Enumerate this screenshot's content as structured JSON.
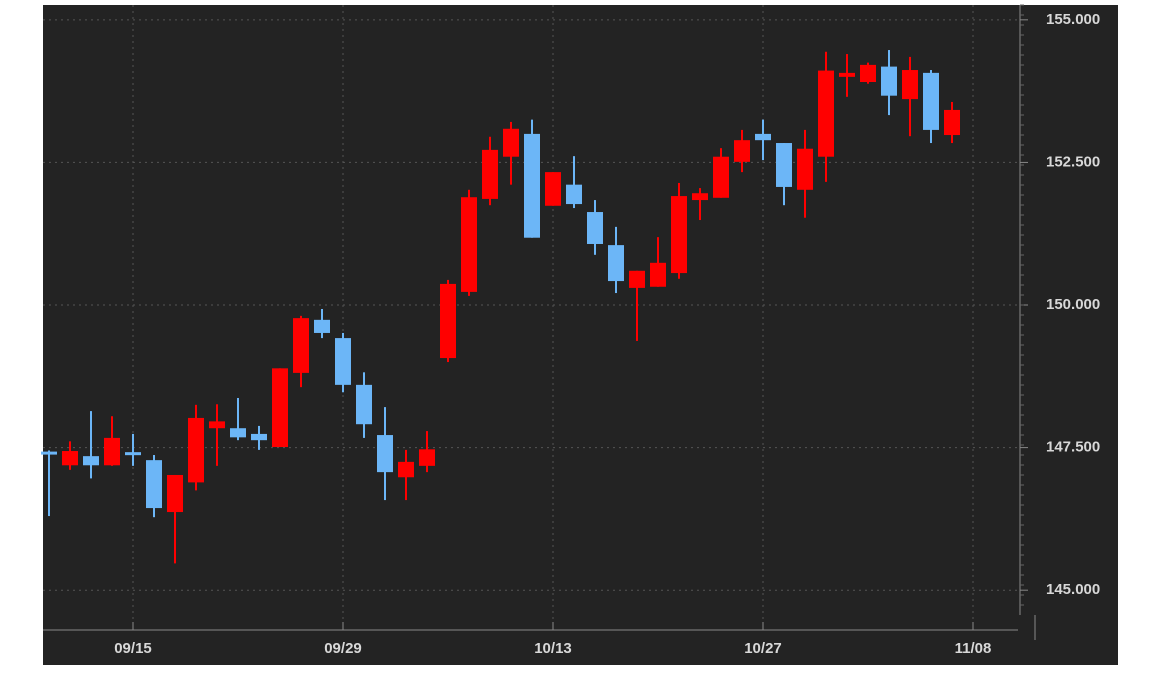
{
  "chart_data": {
    "type": "candlestick",
    "categories": [
      null,
      null,
      null,
      null,
      "09/15",
      null,
      null,
      null,
      null,
      null,
      null,
      null,
      null,
      null,
      "09/29",
      null,
      null,
      null,
      null,
      null,
      null,
      null,
      null,
      null,
      "10/13",
      null,
      null,
      null,
      null,
      null,
      null,
      null,
      null,
      null,
      "10/27",
      null,
      null,
      null,
      null,
      null,
      null,
      null,
      null,
      null,
      "11/08"
    ],
    "open": [
      147.43,
      147.19,
      147.35,
      147.19,
      147.42,
      147.28,
      146.37,
      146.89,
      147.84,
      147.84,
      147.74,
      147.51,
      148.81,
      149.74,
      149.42,
      148.6,
      147.72,
      146.98,
      147.18,
      149.07,
      150.23,
      151.86,
      152.6,
      153.0,
      151.74,
      152.11,
      151.63,
      151.05,
      150.3,
      150.32,
      150.56,
      151.84,
      151.88,
      152.51,
      153.0,
      152.84,
      152.02,
      152.6,
      154.0,
      153.91,
      154.18,
      153.61,
      154.07,
      152.98,
      null
    ],
    "high": [
      147.45,
      147.61,
      148.14,
      148.05,
      147.74,
      147.37,
      147.02,
      148.25,
      148.26,
      148.37,
      147.88,
      148.89,
      149.81,
      149.93,
      149.51,
      148.82,
      148.21,
      147.46,
      147.79,
      150.44,
      152.02,
      152.95,
      153.21,
      153.25,
      152.33,
      152.61,
      151.84,
      151.37,
      150.6,
      151.19,
      152.14,
      152.05,
      152.75,
      153.07,
      153.25,
      152.84,
      153.07,
      154.44,
      154.4,
      154.25,
      154.47,
      154.35,
      154.12,
      153.56,
      null
    ],
    "low": [
      146.3,
      147.11,
      146.96,
      147.18,
      147.18,
      146.28,
      145.47,
      146.75,
      147.18,
      147.63,
      147.46,
      147.51,
      148.56,
      149.42,
      148.47,
      147.67,
      146.58,
      146.58,
      147.07,
      149.0,
      150.16,
      151.75,
      152.11,
      151.18,
      151.74,
      151.7,
      150.88,
      150.21,
      149.37,
      150.32,
      150.46,
      151.49,
      151.88,
      152.33,
      152.54,
      151.75,
      151.53,
      152.16,
      153.65,
      153.88,
      153.33,
      152.96,
      152.84,
      152.84,
      null
    ],
    "close": [
      147.42,
      147.44,
      147.19,
      147.67,
      147.38,
      146.44,
      147.02,
      148.02,
      147.96,
      147.68,
      147.63,
      148.89,
      149.77,
      149.51,
      148.6,
      147.91,
      147.07,
      147.25,
      147.47,
      150.37,
      151.89,
      152.72,
      153.09,
      151.18,
      152.33,
      151.77,
      151.07,
      150.42,
      150.6,
      150.74,
      151.91,
      151.96,
      152.6,
      152.89,
      152.89,
      152.07,
      152.74,
      154.11,
      154.07,
      154.21,
      153.67,
      154.12,
      153.07,
      153.42,
      null
    ],
    "up_color": "#ff0000",
    "down_color": "#6cb6f7",
    "ylim": [
      144.53,
      155.26
    ],
    "yticks": [
      {
        "value": 145,
        "label": "145.000"
      },
      {
        "value": 147.5,
        "label": "147.500"
      },
      {
        "value": 150,
        "label": "150.000"
      },
      {
        "value": 152.5,
        "label": "152.500"
      },
      {
        "value": 155,
        "label": "155.000"
      }
    ],
    "grid": true
  }
}
